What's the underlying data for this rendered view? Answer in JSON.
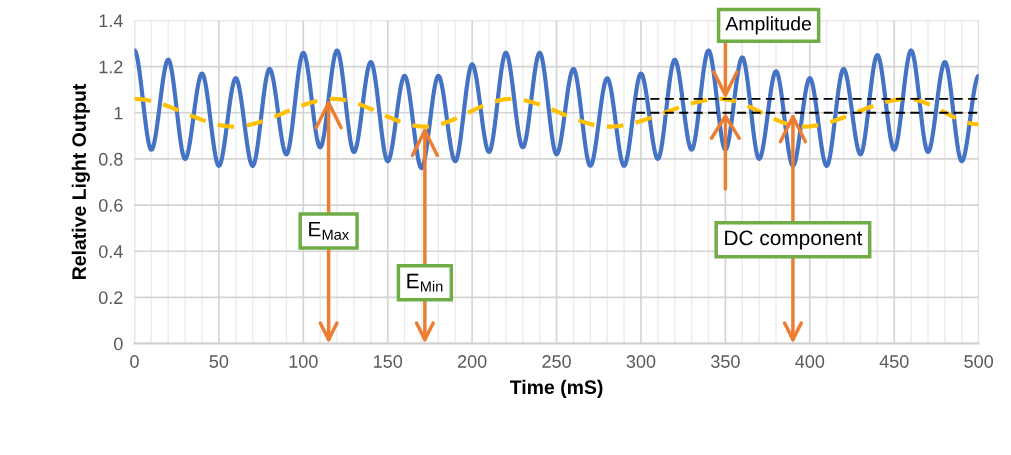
{
  "chart_data": {
    "type": "line",
    "xlabel": "Time (mS)",
    "ylabel": "Relative Light Output",
    "xlim": [
      0,
      500
    ],
    "xticks": [
      0,
      50,
      100,
      150,
      200,
      250,
      300,
      350,
      400,
      450,
      500
    ],
    "ylim": [
      0,
      1.4
    ],
    "yticks": [
      0,
      0.2,
      0.4,
      0.6,
      0.8,
      1,
      1.2,
      1.4
    ],
    "grid": true,
    "legend": false,
    "marker": "none",
    "series": [
      {
        "color": "#4472c4",
        "line_style": "solid",
        "x": [
          0,
          10,
          20,
          30,
          40,
          50,
          60,
          70,
          80,
          90,
          100,
          110,
          120,
          130,
          140,
          150,
          160,
          170,
          180,
          190,
          200,
          210,
          220,
          230,
          240,
          250,
          260,
          270,
          280,
          290,
          300,
          310,
          320,
          330,
          340,
          350,
          360,
          370,
          380,
          390,
          400,
          410,
          420,
          430,
          440,
          450,
          460,
          470,
          480,
          490,
          500
        ],
        "values": [
          1.27,
          0.84,
          1.23,
          0.8,
          1.17,
          0.77,
          1.15,
          0.77,
          1.19,
          0.82,
          1.26,
          0.85,
          1.27,
          0.83,
          1.22,
          0.79,
          1.16,
          0.76,
          1.16,
          0.79,
          1.21,
          0.83,
          1.26,
          0.85,
          1.26,
          0.82,
          1.19,
          0.77,
          1.15,
          0.77,
          1.17,
          0.8,
          1.23,
          0.84,
          1.27,
          0.84,
          1.24,
          0.8,
          1.18,
          0.77,
          1.15,
          0.77,
          1.19,
          0.82,
          1.25,
          0.84,
          1.27,
          0.83,
          1.22,
          0.79,
          1.16
        ]
      },
      {
        "color": "#ffc000",
        "line_style": "dashed",
        "x": [
          0,
          59,
          118,
          172,
          223,
          281,
          347,
          396,
          458,
          500
        ],
        "values": [
          1.06,
          0.94,
          1.06,
          0.94,
          1.06,
          0.94,
          1.06,
          0.94,
          1.06,
          0.95
        ]
      },
      {
        "color": "#000000",
        "line_style": "dashed",
        "x": [
          297,
          500
        ],
        "values": [
          1.06,
          1.06
        ]
      },
      {
        "color": "#000000",
        "line_style": "dashed",
        "x": [
          297,
          500
        ],
        "values": [
          1.0,
          1.0
        ]
      }
    ],
    "annotations": [
      {
        "text": "E$_{Max}$",
        "x": 115,
        "y": 1.06
      },
      {
        "text": "E$_{Min}$",
        "x": 172,
        "y": 0.94
      },
      {
        "text": "DC component",
        "x": 390,
        "y": 1.0
      },
      {
        "text": "Amplitude",
        "x": 350,
        "y": 1.06
      }
    ]
  }
}
